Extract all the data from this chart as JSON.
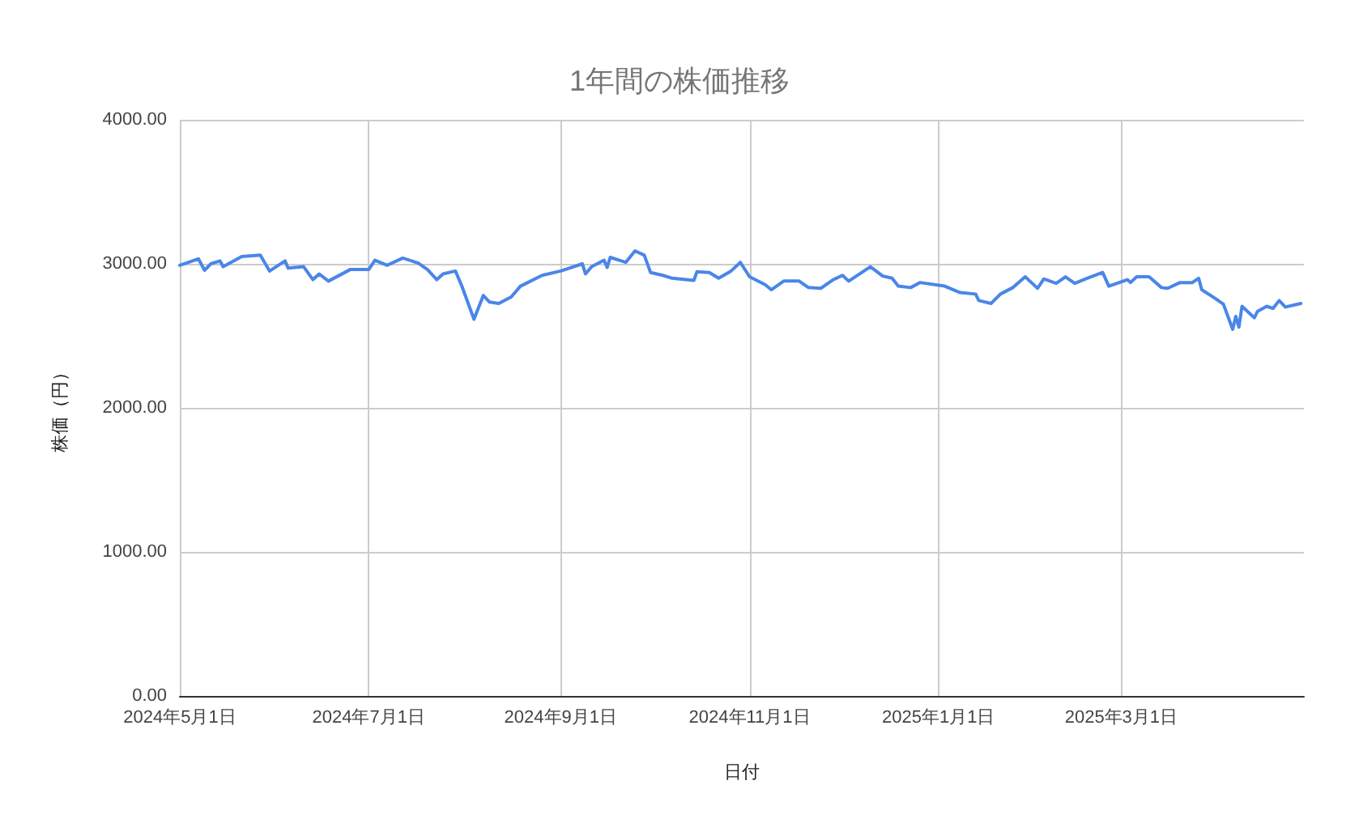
{
  "chart_data": {
    "type": "line",
    "title": "1年間の株価推移",
    "xlabel": "日付",
    "ylabel": "株価（円）",
    "x": [
      "2024-05-01",
      "2024-05-07",
      "2024-05-09",
      "2024-05-11",
      "2024-05-14",
      "2024-05-15",
      "2024-05-21",
      "2024-05-27",
      "2024-05-30",
      "2024-06-04",
      "2024-06-05",
      "2024-06-10",
      "2024-06-13",
      "2024-06-15",
      "2024-06-18",
      "2024-06-25",
      "2024-07-01",
      "2024-07-03",
      "2024-07-07",
      "2024-07-12",
      "2024-07-17",
      "2024-07-20",
      "2024-07-23",
      "2024-07-25",
      "2024-07-29",
      "2024-07-31",
      "2024-08-04",
      "2024-08-07",
      "2024-08-09",
      "2024-08-12",
      "2024-08-16",
      "2024-08-19",
      "2024-08-26",
      "2024-09-01",
      "2024-09-08",
      "2024-09-09",
      "2024-09-11",
      "2024-09-15",
      "2024-09-16",
      "2024-09-17",
      "2024-09-22",
      "2024-09-25",
      "2024-09-28",
      "2024-09-30",
      "2024-10-04",
      "2024-10-07",
      "2024-10-14",
      "2024-10-15",
      "2024-10-19",
      "2024-10-22",
      "2024-10-26",
      "2024-10-29",
      "2024-11-01",
      "2024-11-06",
      "2024-11-08",
      "2024-11-12",
      "2024-11-17",
      "2024-11-20",
      "2024-11-24",
      "2024-11-28",
      "2024-12-01",
      "2024-12-03",
      "2024-12-10",
      "2024-12-14",
      "2024-12-17",
      "2024-12-19",
      "2024-12-23",
      "2024-12-26",
      "2025-01-03",
      "2025-01-08",
      "2025-01-13",
      "2025-01-14",
      "2025-01-18",
      "2025-01-21",
      "2025-01-25",
      "2025-01-29",
      "2025-02-02",
      "2025-02-04",
      "2025-02-08",
      "2025-02-11",
      "2025-02-14",
      "2025-02-18",
      "2025-02-23",
      "2025-02-25",
      "2025-03-03",
      "2025-03-04",
      "2025-03-06",
      "2025-03-10",
      "2025-03-14",
      "2025-03-16",
      "2025-03-20",
      "2025-03-24",
      "2025-03-26",
      "2025-03-27",
      "2025-03-31",
      "2025-04-03",
      "2025-04-06",
      "2025-04-07",
      "2025-04-08",
      "2025-04-09",
      "2025-04-13",
      "2025-04-14",
      "2025-04-17",
      "2025-04-19",
      "2025-04-21",
      "2025-04-23",
      "2025-04-28"
    ],
    "series": [
      {
        "color": "#4a86e8",
        "values": [
          2990,
          3035,
          2955,
          3000,
          3020,
          2980,
          3050,
          3060,
          2950,
          3020,
          2970,
          2980,
          2890,
          2930,
          2880,
          2960,
          2960,
          3025,
          2990,
          3040,
          3005,
          2960,
          2890,
          2930,
          2950,
          2850,
          2615,
          2780,
          2735,
          2725,
          2770,
          2845,
          2920,
          2950,
          3000,
          2930,
          2980,
          3025,
          2975,
          3045,
          3010,
          3090,
          3060,
          2940,
          2920,
          2900,
          2885,
          2945,
          2940,
          2900,
          2950,
          3010,
          2910,
          2855,
          2820,
          2880,
          2880,
          2835,
          2830,
          2890,
          2920,
          2880,
          2980,
          2915,
          2900,
          2845,
          2835,
          2870,
          2845,
          2800,
          2790,
          2745,
          2725,
          2790,
          2835,
          2910,
          2830,
          2895,
          2865,
          2910,
          2865,
          2900,
          2940,
          2845,
          2890,
          2870,
          2910,
          2910,
          2835,
          2830,
          2870,
          2870,
          2900,
          2820,
          2765,
          2720,
          2545,
          2635,
          2560,
          2705,
          2625,
          2670,
          2705,
          2690,
          2745,
          2700,
          2725
        ]
      }
    ],
    "xlim": [
      "2024-05-01",
      "2025-04-29"
    ],
    "xticks": [
      {
        "value": "2024-05-01",
        "label": "2024年5月1日"
      },
      {
        "value": "2024-07-01",
        "label": "2024年7月1日"
      },
      {
        "value": "2024-09-01",
        "label": "2024年9月1日"
      },
      {
        "value": "2024-11-01",
        "label": "2024年11月1日"
      },
      {
        "value": "2025-01-01",
        "label": "2025年1月1日"
      },
      {
        "value": "2025-03-01",
        "label": "2025年3月1日"
      }
    ],
    "ylim": [
      0,
      4000
    ],
    "yticks": [
      {
        "value": 0,
        "label": "0.00"
      },
      {
        "value": 1000,
        "label": "1000.00"
      },
      {
        "value": 2000,
        "label": "2000.00"
      },
      {
        "value": 3000,
        "label": "3000.00"
      },
      {
        "value": 4000,
        "label": "4000.00"
      }
    ],
    "grid": true,
    "marker": "none",
    "line_style": "solid"
  }
}
